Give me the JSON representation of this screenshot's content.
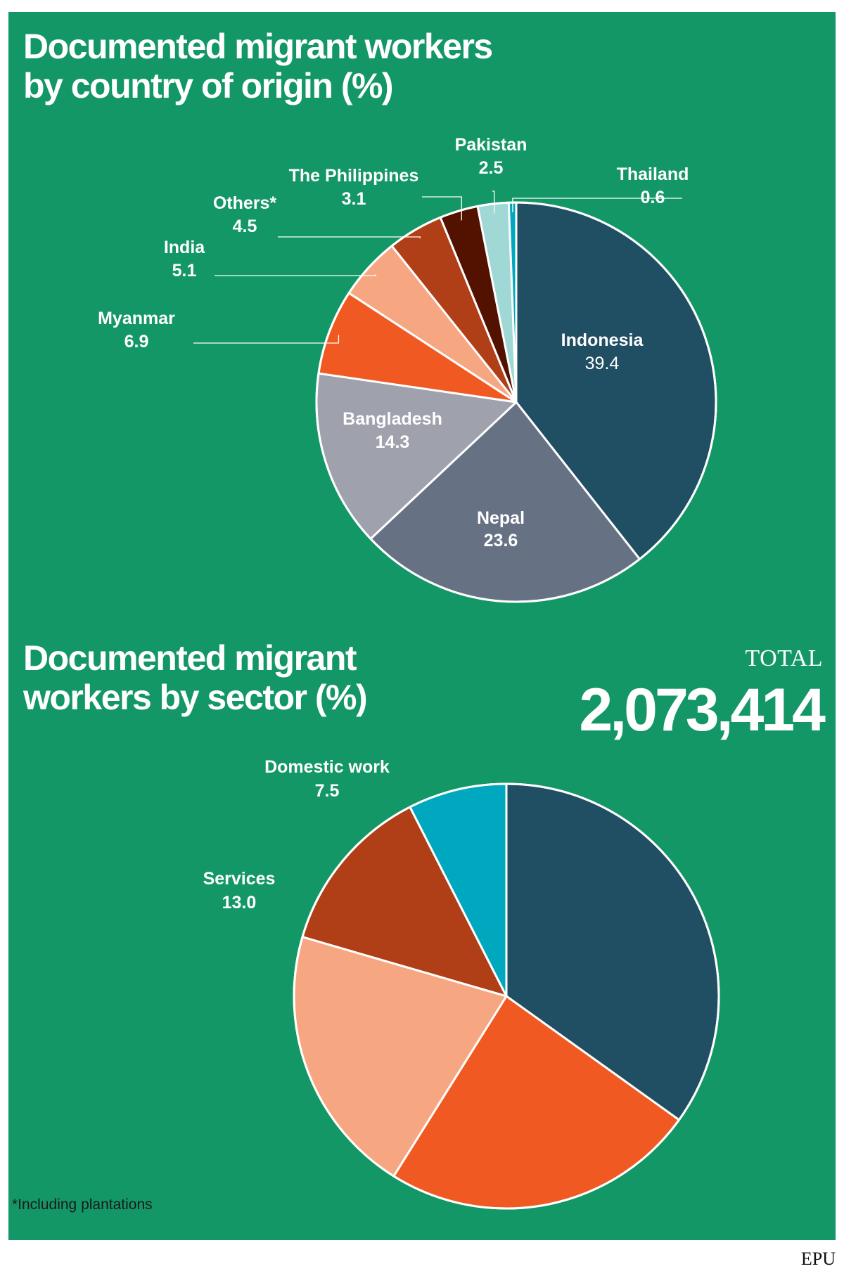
{
  "chart_data": [
    {
      "type": "pie",
      "title": "Documented migrant workers by country of origin (%)",
      "slices": [
        {
          "label": "Indonesia",
          "value": 39.4,
          "color": "#204e63"
        },
        {
          "label": "Nepal",
          "value": 23.6,
          "color": "#667284"
        },
        {
          "label": "Bangladesh",
          "value": 14.3,
          "color": "#9fa1ad"
        },
        {
          "label": "Myanmar",
          "value": 6.9,
          "color": "#f05a22"
        },
        {
          "label": "India",
          "value": 5.1,
          "color": "#f6a781"
        },
        {
          "label": "Others*",
          "value": 4.5,
          "color": "#b03f17"
        },
        {
          "label": "The Philippines",
          "value": 3.1,
          "color": "#531200"
        },
        {
          "label": "Pakistan",
          "value": 2.5,
          "color": "#9fd8d4"
        },
        {
          "label": "Thailand",
          "value": 0.6,
          "color": "#00a8bf"
        }
      ]
    },
    {
      "type": "pie",
      "title": "Documented migrant workers by sector (%)",
      "total_label": "TOTAL",
      "total_value": "2,073,414",
      "slices": [
        {
          "label": "",
          "value": 34.9,
          "color": "#204e63"
        },
        {
          "label": "",
          "value": 24.0,
          "color": "#f05a22"
        },
        {
          "label": "",
          "value": 20.6,
          "color": "#f6a781"
        },
        {
          "label": "Services",
          "value": 13.0,
          "color": "#b03f17"
        },
        {
          "label": "Domestic work",
          "value": 7.5,
          "color": "#00a8bf"
        }
      ]
    }
  ],
  "footnote": "*Including plantations",
  "source": "EPU"
}
